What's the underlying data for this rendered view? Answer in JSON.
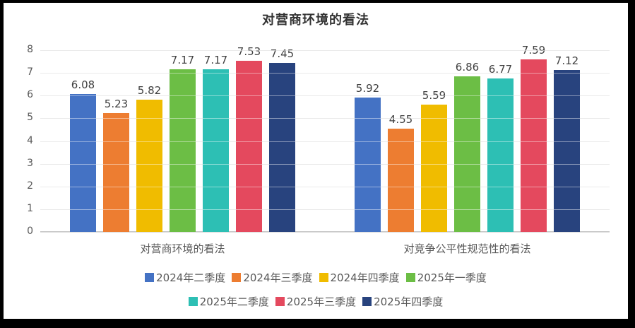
{
  "frame": {
    "border_color": "#000000",
    "background_color": "#ffffff"
  },
  "chart_data": {
    "type": "bar",
    "title": "对营商环境的看法",
    "categories": [
      "对营商环境的看法",
      "对竞争公平性规范性的看法"
    ],
    "series": [
      {
        "name": "2024年二季度",
        "color": "#4472C4",
        "values": [
          6.08,
          5.92
        ]
      },
      {
        "name": "2024年三季度",
        "color": "#ED7D31",
        "values": [
          5.23,
          4.55
        ]
      },
      {
        "name": "2024年四季度",
        "color": "#F0BC00",
        "values": [
          5.82,
          5.59
        ]
      },
      {
        "name": "2025年一季度",
        "color": "#6CBE45",
        "values": [
          7.17,
          6.86
        ]
      },
      {
        "name": "2025年二季度",
        "color": "#2DBFB4",
        "values": [
          7.17,
          6.77
        ]
      },
      {
        "name": "2025年三季度",
        "color": "#E4495E",
        "values": [
          7.53,
          7.59
        ]
      },
      {
        "name": "2025年四季度",
        "color": "#28437E",
        "values": [
          7.45,
          7.12
        ]
      }
    ],
    "ylim": [
      0,
      8
    ],
    "y_ticks": [
      0,
      1,
      2,
      3,
      4,
      5,
      6,
      7,
      8
    ],
    "grid": true,
    "value_labels": true,
    "legend_position": "bottom",
    "legend_rows": [
      4,
      3
    ],
    "styles": {
      "gridline_color": "#d9d9d9",
      "axis_line_color": "#c9c9c9",
      "tick_label_color": "#595959",
      "value_label_color": "#404040",
      "title_color": "#333333"
    }
  }
}
